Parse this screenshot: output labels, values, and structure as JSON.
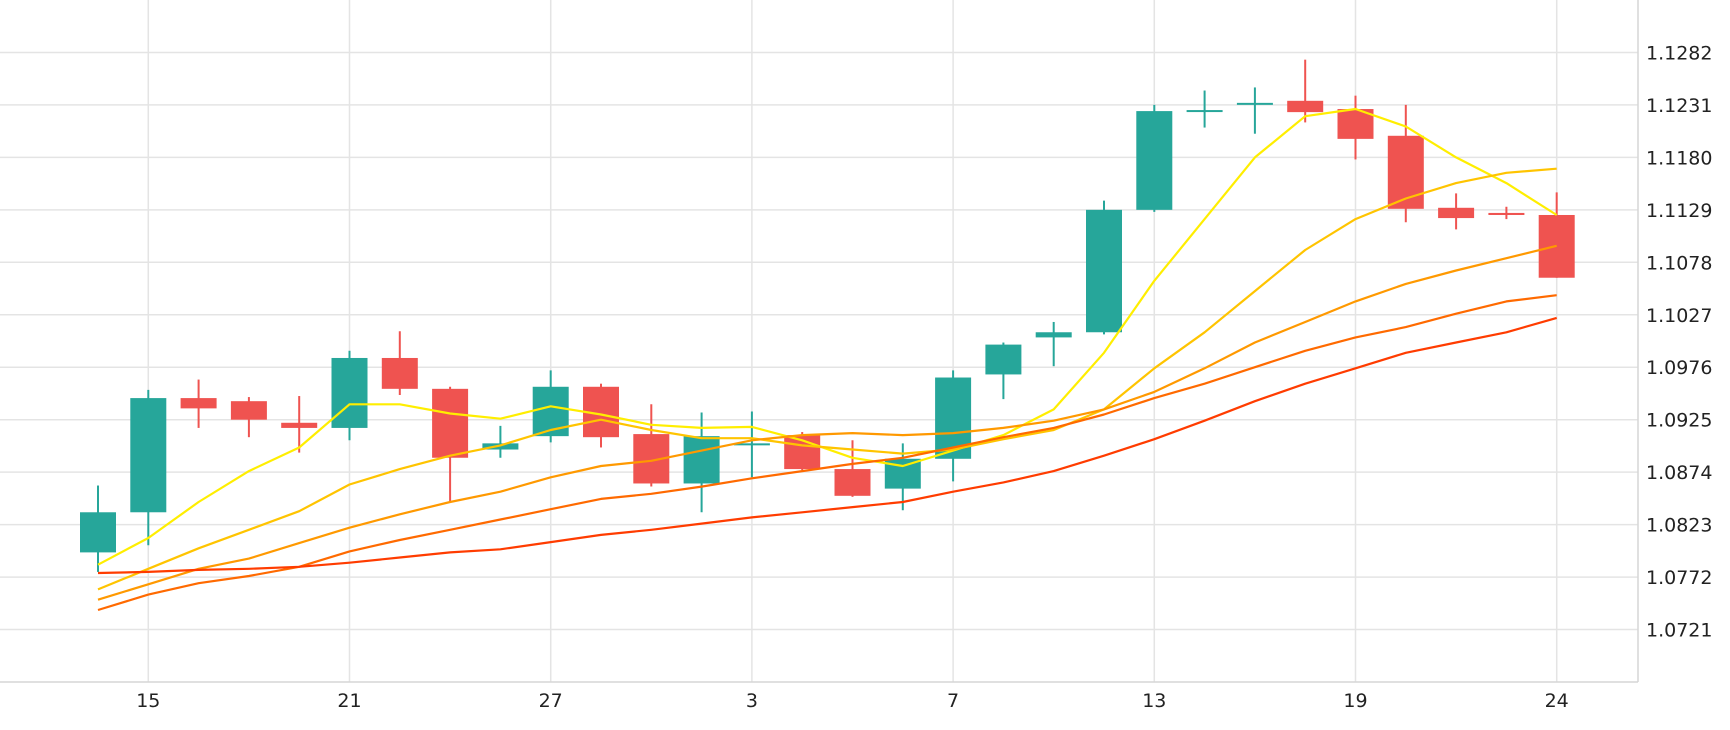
{
  "chart_data": {
    "type": "candlestick",
    "title": "",
    "xlabel": "",
    "ylabel": "",
    "ylim": [
      1.067,
      1.1333
    ],
    "grid": true,
    "colors": {
      "up": "#26a69a",
      "down": "#ef5350",
      "background": "#ffffff",
      "grid": "#e4e4e4"
    },
    "y_ticks": [
      "1.1282",
      "1.1231",
      "1.1180",
      "1.1129",
      "1.1078",
      "1.1027",
      "1.0976",
      "1.0925",
      "1.0874",
      "1.0823",
      "1.0772",
      "1.0721"
    ],
    "y_tick_values": [
      1.1282,
      1.1231,
      1.118,
      1.1129,
      1.1078,
      1.1027,
      1.0976,
      1.0925,
      1.0874,
      1.0823,
      1.0772,
      1.0721
    ],
    "x_ticks": [
      {
        "label": "15",
        "index": 1
      },
      {
        "label": "21",
        "index": 5
      },
      {
        "label": "27",
        "index": 9
      },
      {
        "label": "3",
        "index": 13
      },
      {
        "label": "7",
        "index": 17
      },
      {
        "label": "13",
        "index": 21
      },
      {
        "label": "19",
        "index": 25
      },
      {
        "label": "24",
        "index": 29
      }
    ],
    "candles": [
      {
        "o": 1.0796,
        "h": 1.0861,
        "l": 1.0777,
        "c": 1.0835
      },
      {
        "o": 1.0835,
        "h": 1.0954,
        "l": 1.0803,
        "c": 1.0946
      },
      {
        "o": 1.0946,
        "h": 1.0964,
        "l": 1.0917,
        "c": 1.0936
      },
      {
        "o": 1.0943,
        "h": 1.0947,
        "l": 1.0908,
        "c": 1.0925
      },
      {
        "o": 1.0922,
        "h": 1.0948,
        "l": 1.0893,
        "c": 1.0917
      },
      {
        "o": 1.0917,
        "h": 1.0992,
        "l": 1.0905,
        "c": 1.0985
      },
      {
        "o": 1.0985,
        "h": 1.1011,
        "l": 1.0949,
        "c": 1.0955
      },
      {
        "o": 1.0955,
        "h": 1.0957,
        "l": 1.0845,
        "c": 1.0888
      },
      {
        "o": 1.0896,
        "h": 1.0919,
        "l": 1.0888,
        "c": 1.0902
      },
      {
        "o": 1.0909,
        "h": 1.0973,
        "l": 1.0903,
        "c": 1.0957
      },
      {
        "o": 1.0957,
        "h": 1.096,
        "l": 1.0898,
        "c": 1.0908
      },
      {
        "o": 1.0911,
        "h": 1.094,
        "l": 1.086,
        "c": 1.0863
      },
      {
        "o": 1.0863,
        "h": 1.0932,
        "l": 1.0835,
        "c": 1.0909
      },
      {
        "o": 1.0902,
        "h": 1.0933,
        "l": 1.0869,
        "c": 1.0902
      },
      {
        "o": 1.091,
        "h": 1.0913,
        "l": 1.0876,
        "c": 1.0877
      },
      {
        "o": 1.0877,
        "h": 1.0905,
        "l": 1.085,
        "c": 1.0851
      },
      {
        "o": 1.0858,
        "h": 1.0902,
        "l": 1.0837,
        "c": 1.0887
      },
      {
        "o": 1.0887,
        "h": 1.0973,
        "l": 1.0865,
        "c": 1.0966
      },
      {
        "o": 1.0969,
        "h": 1.1,
        "l": 1.0945,
        "c": 1.0998
      },
      {
        "o": 1.1005,
        "h": 1.102,
        "l": 1.0977,
        "c": 1.101
      },
      {
        "o": 1.101,
        "h": 1.1138,
        "l": 1.1008,
        "c": 1.1129
      },
      {
        "o": 1.1129,
        "h": 1.1231,
        "l": 1.1127,
        "c": 1.1225
      },
      {
        "o": 1.1226,
        "h": 1.1245,
        "l": 1.1209,
        "c": 1.1226
      },
      {
        "o": 1.1232,
        "h": 1.1248,
        "l": 1.1203,
        "c": 1.1233
      },
      {
        "o": 1.1235,
        "h": 1.1275,
        "l": 1.1214,
        "c": 1.1224
      },
      {
        "o": 1.1227,
        "h": 1.124,
        "l": 1.1178,
        "c": 1.1198
      },
      {
        "o": 1.1201,
        "h": 1.1231,
        "l": 1.1117,
        "c": 1.113
      },
      {
        "o": 1.1131,
        "h": 1.1145,
        "l": 1.111,
        "c": 1.1121
      },
      {
        "o": 1.1126,
        "h": 1.1132,
        "l": 1.112,
        "c": 1.1124
      },
      {
        "o": 1.1124,
        "h": 1.1146,
        "l": 1.1063,
        "c": 1.1063
      }
    ],
    "series": [
      {
        "color": "#ffee00",
        "values": [
          1.0784,
          1.081,
          1.0845,
          1.0875,
          1.0898,
          1.094,
          1.094,
          1.0931,
          1.0926,
          1.0938,
          1.093,
          1.092,
          1.0917,
          1.0918,
          1.0905,
          1.0888,
          1.088,
          1.0895,
          1.091,
          1.0935,
          1.099,
          1.106,
          1.112,
          1.118,
          1.122,
          1.1227,
          1.121,
          1.118,
          1.1155,
          1.1124
        ]
      },
      {
        "color": "#ffc400",
        "values": [
          1.076,
          1.078,
          1.08,
          1.0818,
          1.0836,
          1.0862,
          1.0877,
          1.089,
          1.09,
          1.0915,
          1.0925,
          1.0915,
          1.0907,
          1.0907,
          1.09,
          1.0896,
          1.0892,
          1.0896,
          1.0906,
          1.0915,
          1.0935,
          1.0975,
          1.101,
          1.105,
          1.109,
          1.112,
          1.114,
          1.1155,
          1.1165,
          1.1169
        ]
      },
      {
        "color": "#ff9900",
        "values": [
          1.075,
          1.0765,
          1.078,
          1.079,
          1.0805,
          1.082,
          1.0833,
          1.0845,
          1.0855,
          1.0869,
          1.088,
          1.0885,
          1.0895,
          1.0905,
          1.091,
          1.0912,
          1.091,
          1.0912,
          1.0917,
          1.0924,
          1.0935,
          1.0952,
          1.0975,
          1.1,
          1.102,
          1.104,
          1.1057,
          1.107,
          1.1082,
          1.1094
        ]
      },
      {
        "color": "#ff6a00",
        "values": [
          1.074,
          1.0755,
          1.0766,
          1.0773,
          1.0782,
          1.0797,
          1.0808,
          1.0818,
          1.0828,
          1.0838,
          1.0848,
          1.0853,
          1.086,
          1.0868,
          1.0875,
          1.0882,
          1.0888,
          1.0898,
          1.0908,
          1.0917,
          1.093,
          1.0946,
          1.096,
          1.0976,
          1.0992,
          1.1005,
          1.1015,
          1.1028,
          1.104,
          1.1046
        ]
      },
      {
        "color": "#ff3c00",
        "values": [
          1.0776,
          1.0777,
          1.0779,
          1.078,
          1.0782,
          1.0786,
          1.0791,
          1.0796,
          1.0799,
          1.0806,
          1.0813,
          1.0818,
          1.0824,
          1.083,
          1.0835,
          1.084,
          1.0845,
          1.0855,
          1.0864,
          1.0875,
          1.089,
          1.0906,
          1.0924,
          1.0943,
          1.096,
          1.0975,
          1.099,
          1.1,
          1.101,
          1.1024
        ]
      }
    ]
  }
}
